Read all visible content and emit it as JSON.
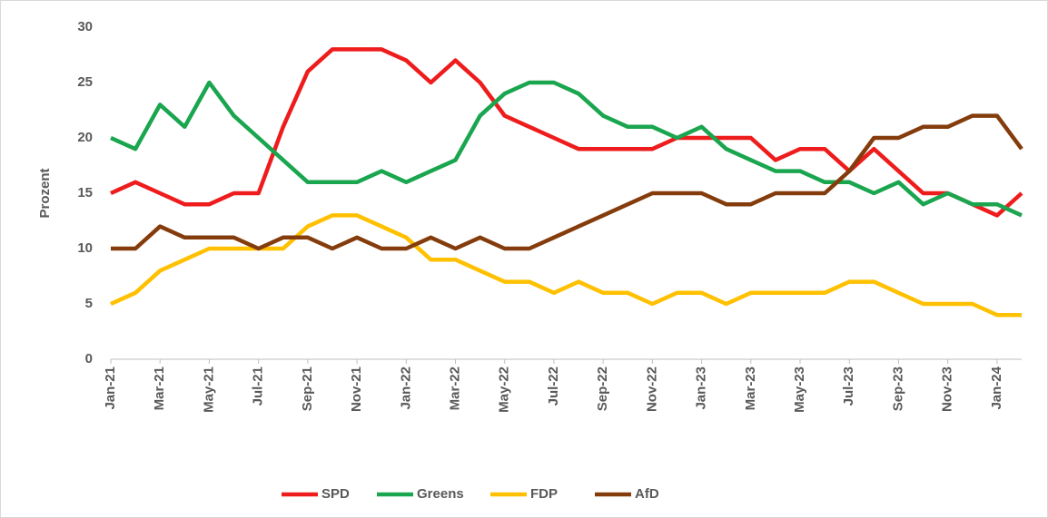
{
  "chart_data": {
    "type": "line",
    "y_label": "Prozent",
    "categories": [
      "Jan-21",
      null,
      "Mar-21",
      null,
      "May-21",
      null,
      "Jul-21",
      null,
      "Sep-21",
      null,
      "Nov-21",
      null,
      "Jan-22",
      null,
      "Mar-22",
      null,
      "May-22",
      null,
      "Jul-22",
      null,
      "Sep-22",
      null,
      "Nov-22",
      null,
      "Jan-23",
      null,
      "Mar-23",
      null,
      "May-23",
      null,
      "Jul-23",
      null,
      "Sep-23",
      null,
      "Nov-23",
      null,
      "Jan-24",
      null
    ],
    "series": [
      {
        "name": "SPD",
        "color": "#ee1c1c",
        "values": [
          15,
          16,
          15,
          14,
          14,
          15,
          15,
          21,
          26,
          28,
          28,
          28,
          27,
          25,
          27,
          25,
          22,
          21,
          20,
          19,
          19,
          19,
          19,
          20,
          20,
          20,
          20,
          18,
          19,
          19,
          17,
          19,
          17,
          15,
          15,
          14,
          13,
          15
        ]
      },
      {
        "name": "Greens",
        "color": "#1aa54f",
        "values": [
          20,
          19,
          23,
          21,
          25,
          22,
          20,
          18,
          16,
          16,
          16,
          17,
          16,
          17,
          18,
          22,
          24,
          25,
          25,
          24,
          22,
          21,
          21,
          20,
          21,
          19,
          18,
          17,
          17,
          16,
          16,
          15,
          16,
          14,
          15,
          14,
          14,
          13
        ]
      },
      {
        "name": "FDP",
        "color": "#ffc000",
        "values": [
          5,
          6,
          8,
          9,
          10,
          10,
          10,
          10,
          12,
          13,
          13,
          12,
          11,
          9,
          9,
          8,
          7,
          7,
          6,
          7,
          6,
          6,
          5,
          6,
          6,
          5,
          6,
          6,
          6,
          6,
          7,
          7,
          6,
          5,
          5,
          5,
          4,
          4
        ]
      },
      {
        "name": "AfD",
        "color": "#843c0c",
        "values": [
          10,
          10,
          12,
          11,
          11,
          11,
          10,
          11,
          11,
          10,
          11,
          10,
          10,
          11,
          10,
          11,
          10,
          10,
          11,
          12,
          13,
          14,
          15,
          15,
          15,
          14,
          14,
          15,
          15,
          15,
          17,
          20,
          20,
          21,
          21,
          22,
          22,
          19
        ]
      }
    ],
    "ylim": [
      0,
      30
    ],
    "yticks": [
      0,
      5,
      10,
      15,
      20,
      25,
      30
    ],
    "grid": false,
    "legend": "bottom"
  }
}
